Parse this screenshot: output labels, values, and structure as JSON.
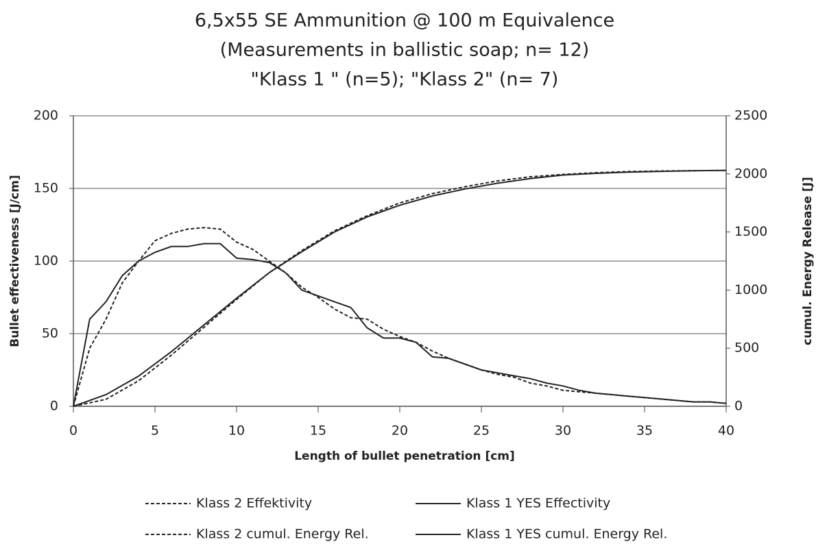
{
  "chart_data": {
    "type": "line",
    "title": [
      "6,5x55 SE Ammunition @ 100 m Equivalence",
      "(Measurements in ballistic soap; n= 12)",
      "\"Klass 1 \" (n=5); \"Klass 2\"  (n= 7)"
    ],
    "x_label": "Length of bullet penetration [cm]",
    "y_label": "Bullet effectiveness [J/cm]",
    "y2_label": "cumul. Energy Release [J]",
    "xlim": [
      0,
      40
    ],
    "xticks": [
      0,
      5,
      10,
      15,
      20,
      25,
      30,
      35,
      40
    ],
    "ylim": [
      0,
      200
    ],
    "yticks": [
      0,
      50,
      100,
      150,
      200
    ],
    "y2lim": [
      0,
      2500
    ],
    "y2ticks": [
      0,
      500,
      1000,
      1500,
      2000,
      2500
    ],
    "grid": true,
    "series": [
      {
        "name": "Klass 2 Effektivity",
        "color": "#222222",
        "style": "dashed",
        "x": [
          0,
          1,
          2,
          3,
          4,
          5,
          6,
          7,
          8,
          9,
          10,
          11,
          12,
          13,
          14,
          15,
          16,
          17,
          18,
          19,
          20,
          21,
          22,
          23,
          24,
          25,
          26,
          27,
          28,
          29,
          30,
          31,
          32,
          33,
          34,
          35,
          36,
          37,
          38,
          39,
          40
        ],
        "values": [
          0,
          40,
          60,
          85,
          100,
          114,
          119,
          122,
          123,
          122,
          113,
          108,
          100,
          92,
          82,
          75,
          67,
          61,
          60,
          53,
          48,
          44,
          38,
          33,
          29,
          25,
          22,
          20,
          16,
          14,
          11,
          10,
          9,
          8,
          7,
          6,
          5,
          4,
          3,
          3,
          2
        ]
      },
      {
        "name": "Klass 1 YES Effectivity",
        "color": "#222222",
        "style": "solid",
        "x": [
          0,
          1,
          2,
          3,
          4,
          5,
          6,
          7,
          8,
          9,
          10,
          11,
          12,
          13,
          14,
          15,
          16,
          17,
          18,
          19,
          20,
          21,
          22,
          23,
          24,
          25,
          26,
          27,
          28,
          29,
          30,
          31,
          32,
          33,
          34,
          35,
          36,
          37,
          38,
          39,
          40
        ],
        "values": [
          0,
          60,
          72,
          90,
          100,
          106,
          110,
          110,
          112,
          112,
          102,
          101,
          99,
          92,
          80,
          76,
          72,
          68,
          54,
          47,
          47,
          44,
          34,
          33,
          29,
          25,
          23,
          21,
          19,
          16,
          14,
          11,
          9,
          8,
          7,
          6,
          5,
          4,
          3,
          3,
          2
        ]
      },
      {
        "name": "Klass 2 cumul. Energy Rel.",
        "color": "#222222",
        "style": "dashed",
        "axis": "y2",
        "x": [
          0,
          2,
          4,
          6,
          8,
          10,
          12,
          14,
          16,
          18,
          20,
          22,
          24,
          26,
          28,
          30,
          32,
          34,
          36,
          38,
          40
        ],
        "values": [
          0,
          60,
          220,
          440,
          680,
          920,
          1150,
          1340,
          1510,
          1640,
          1750,
          1830,
          1890,
          1940,
          1975,
          1995,
          2010,
          2020,
          2025,
          2028,
          2030
        ]
      },
      {
        "name": "Klass 1 YES cumul. Energy Rel.",
        "color": "#222222",
        "style": "solid",
        "axis": "y2",
        "x": [
          0,
          2,
          4,
          6,
          8,
          10,
          12,
          14,
          16,
          18,
          20,
          22,
          24,
          26,
          28,
          30,
          32,
          34,
          36,
          38,
          40
        ],
        "values": [
          0,
          100,
          260,
          470,
          700,
          930,
          1150,
          1330,
          1500,
          1630,
          1730,
          1810,
          1870,
          1920,
          1960,
          1990,
          2005,
          2015,
          2022,
          2027,
          2030
        ]
      }
    ]
  }
}
